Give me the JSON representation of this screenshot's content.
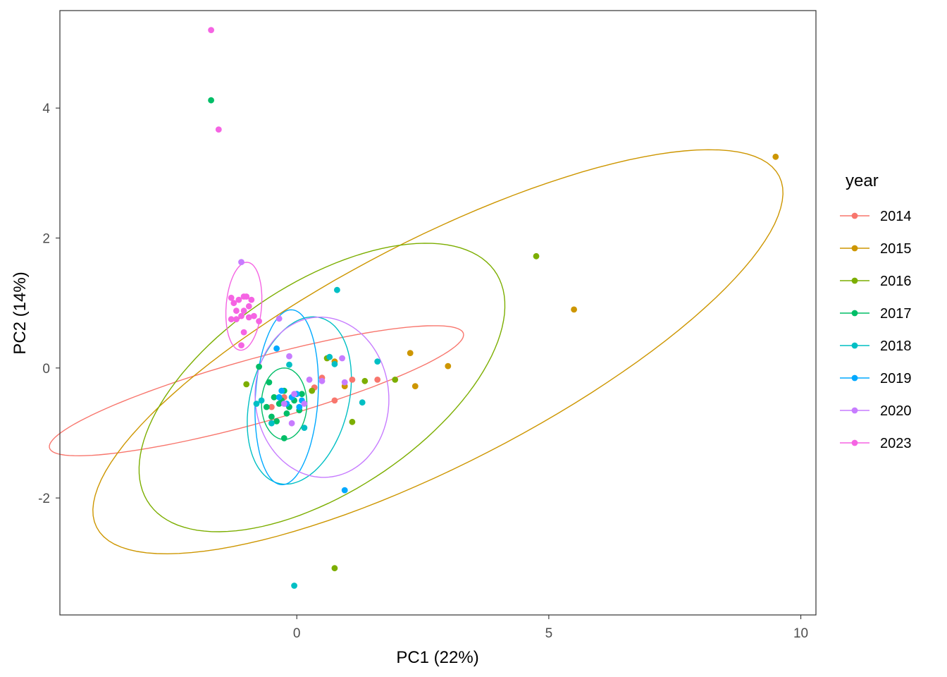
{
  "chart_data": {
    "type": "scatter",
    "title": "",
    "xlabel": "PC1 (22%)",
    "ylabel": "PC2 (14%)",
    "xlim": [
      -4.7,
      10.3
    ],
    "ylim": [
      -3.8,
      5.5
    ],
    "xticks": [
      0,
      5,
      10
    ],
    "yticks": [
      -2,
      0,
      2,
      4
    ],
    "grid": false,
    "legend": {
      "title": "year",
      "placement": "right"
    },
    "series": [
      {
        "name": "2014",
        "color": "#F8766D",
        "points": [
          [
            -0.5,
            -0.6
          ],
          [
            0.35,
            -0.3
          ],
          [
            0.75,
            -0.5
          ],
          [
            1.1,
            -0.18
          ],
          [
            1.6,
            -0.18
          ],
          [
            0.5,
            -0.15
          ],
          [
            -0.25,
            -0.45
          ]
        ],
        "ellipse": {
          "cx": -0.8,
          "cy": -0.35,
          "rx": 4.2,
          "ry": 0.5,
          "angle": 12
        }
      },
      {
        "name": "2015",
        "color": "#CD9600",
        "points": [
          [
            9.5,
            3.25
          ],
          [
            5.5,
            0.9
          ],
          [
            2.25,
            0.23
          ],
          [
            3.0,
            0.03
          ],
          [
            2.35,
            -0.28
          ],
          [
            0.95,
            -0.28
          ],
          [
            0.75,
            0.1
          ]
        ],
        "ellipse": {
          "cx": 2.8,
          "cy": 0.25,
          "rx": 7.3,
          "ry": 1.8,
          "angle": 21
        }
      },
      {
        "name": "2016",
        "color": "#7CAE00",
        "points": [
          [
            4.75,
            1.72
          ],
          [
            0.75,
            -3.08
          ],
          [
            1.35,
            -0.2
          ],
          [
            1.95,
            -0.18
          ],
          [
            1.1,
            -0.83
          ],
          [
            0.3,
            -0.35
          ],
          [
            -1.0,
            -0.25
          ],
          [
            0.6,
            0.15
          ]
        ],
        "ellipse": {
          "cx": 0.5,
          "cy": -0.3,
          "rx": 3.9,
          "ry": 1.7,
          "angle": 24
        }
      },
      {
        "name": "2017",
        "color": "#00BE67",
        "points": [
          [
            -1.7,
            4.12
          ],
          [
            -0.75,
            0.02
          ],
          [
            -0.55,
            -0.22
          ],
          [
            -0.45,
            -0.45
          ],
          [
            -0.35,
            -0.55
          ],
          [
            -0.25,
            -0.35
          ],
          [
            -0.15,
            -0.6
          ],
          [
            -0.05,
            -0.5
          ],
          [
            0.05,
            -0.65
          ],
          [
            -0.5,
            -0.75
          ],
          [
            -0.4,
            -0.82
          ],
          [
            -0.25,
            -1.08
          ],
          [
            -0.6,
            -0.6
          ],
          [
            -0.2,
            -0.7
          ],
          [
            0.1,
            -0.4
          ],
          [
            -0.3,
            -0.5
          ]
        ],
        "ellipse": {
          "cx": -0.25,
          "cy": -0.55,
          "rx": 0.45,
          "ry": 0.55,
          "angle": 0
        }
      },
      {
        "name": "2018",
        "color": "#00BFC4",
        "points": [
          [
            0.8,
            1.2
          ],
          [
            -0.15,
            0.05
          ],
          [
            0.65,
            0.17
          ],
          [
            1.6,
            0.1
          ],
          [
            -0.05,
            -3.35
          ],
          [
            1.3,
            -0.53
          ],
          [
            -0.7,
            -0.5
          ],
          [
            -0.5,
            -0.85
          ],
          [
            0.15,
            -0.92
          ],
          [
            -0.8,
            -0.55
          ],
          [
            0.75,
            0.06
          ]
        ],
        "ellipse": {
          "cx": 0.05,
          "cy": -0.5,
          "rx": 1.35,
          "ry": 0.95,
          "angle": 65
        }
      },
      {
        "name": "2019",
        "color": "#00A9FF",
        "points": [
          [
            0.95,
            -1.88
          ],
          [
            -0.4,
            0.3
          ],
          [
            -0.3,
            -0.35
          ],
          [
            -0.1,
            -0.45
          ],
          [
            0.0,
            -0.4
          ],
          [
            0.1,
            -0.5
          ],
          [
            -0.2,
            -0.55
          ],
          [
            0.05,
            -0.6
          ],
          [
            -0.35,
            -0.45
          ]
        ],
        "ellipse": {
          "cx": -0.2,
          "cy": -0.45,
          "rx": 1.35,
          "ry": 0.62,
          "angle": 85
        }
      },
      {
        "name": "2020",
        "color": "#C77CFF",
        "points": [
          [
            -1.1,
            1.63
          ],
          [
            -0.35,
            0.76
          ],
          [
            -0.15,
            0.18
          ],
          [
            0.9,
            0.15
          ],
          [
            0.25,
            -0.18
          ],
          [
            0.5,
            -0.2
          ],
          [
            0.95,
            -0.22
          ],
          [
            0.15,
            -0.55
          ],
          [
            -0.1,
            -0.85
          ],
          [
            -0.25,
            -0.55
          ],
          [
            -0.05,
            -0.4
          ]
        ],
        "ellipse": {
          "cx": 0.5,
          "cy": -0.45,
          "rx": 1.23,
          "ry": 1.33,
          "angle": 80
        }
      },
      {
        "name": "2023",
        "color": "#F564E3",
        "points": [
          [
            -1.7,
            5.2
          ],
          [
            -1.55,
            3.67
          ],
          [
            -1.0,
            1.1
          ],
          [
            -1.15,
            1.05
          ],
          [
            -1.25,
            1.0
          ],
          [
            -0.9,
            1.05
          ],
          [
            -0.95,
            0.95
          ],
          [
            -1.05,
            0.88
          ],
          [
            -1.2,
            0.88
          ],
          [
            -1.1,
            0.8
          ],
          [
            -0.85,
            0.8
          ],
          [
            -1.2,
            0.75
          ],
          [
            -1.3,
            0.75
          ],
          [
            -0.95,
            0.78
          ],
          [
            -1.05,
            1.1
          ],
          [
            -1.3,
            1.08
          ],
          [
            -1.05,
            0.55
          ],
          [
            -1.1,
            0.35
          ],
          [
            -0.75,
            0.72
          ]
        ],
        "ellipse": {
          "cx": -1.05,
          "cy": 0.95,
          "rx": 0.68,
          "ry": 0.35,
          "angle": 83
        }
      }
    ]
  }
}
